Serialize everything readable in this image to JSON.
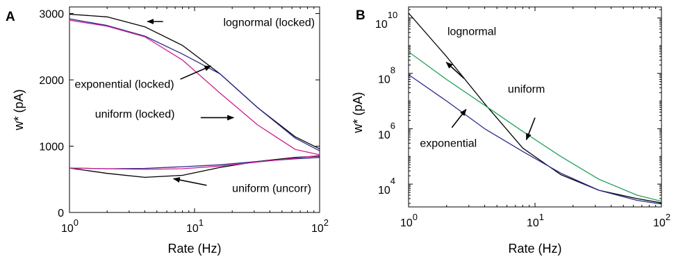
{
  "chart_data": [
    {
      "panel": "A",
      "type": "line",
      "xlabel": "Rate (Hz)",
      "ylabel": "w* (pA)",
      "xscale": "log",
      "yscale": "linear",
      "xlim": [
        1,
        100
      ],
      "ylim": [
        0,
        3100
      ],
      "xticks": [
        {
          "value": 1,
          "base": "10",
          "exp": "0"
        },
        {
          "value": 10,
          "base": "10",
          "exp": "1"
        },
        {
          "value": 100,
          "base": "10",
          "exp": "2"
        }
      ],
      "yticks": [
        {
          "value": 0,
          "label": "0"
        },
        {
          "value": 1000,
          "label": "1000"
        },
        {
          "value": 2000,
          "label": "2000"
        },
        {
          "value": 3000,
          "label": "3000"
        }
      ],
      "grid": false,
      "series": [
        {
          "color": "#000000",
          "x": [
            1,
            2,
            4,
            8,
            16,
            32,
            64,
            100
          ],
          "y": [
            2990,
            2950,
            2800,
            2520,
            2090,
            1580,
            1140,
            960
          ]
        },
        {
          "color": "#2a2a8c",
          "x": [
            1,
            2,
            4,
            8,
            16,
            32,
            64,
            100
          ],
          "y": [
            2920,
            2820,
            2660,
            2390,
            2090,
            1580,
            1120,
            930
          ]
        },
        {
          "color": "#cc1f8f",
          "x": [
            1,
            2,
            4,
            8,
            16,
            32,
            64,
            100
          ],
          "y": [
            2900,
            2810,
            2650,
            2300,
            1800,
            1320,
            950,
            870
          ]
        },
        {
          "color": "#000000",
          "x": [
            1,
            2,
            4,
            8,
            16,
            32,
            64,
            100
          ],
          "y": [
            670,
            590,
            530,
            560,
            680,
            770,
            830,
            850
          ]
        },
        {
          "color": "#2a2a8c",
          "x": [
            1,
            2,
            4,
            8,
            16,
            32,
            64,
            100
          ],
          "y": [
            670,
            660,
            665,
            690,
            720,
            770,
            810,
            830
          ]
        },
        {
          "color": "#cc1f8f",
          "x": [
            1,
            2,
            4,
            8,
            16,
            32,
            64,
            100
          ],
          "y": [
            670,
            660,
            650,
            660,
            700,
            760,
            820,
            860
          ]
        }
      ],
      "annotations": [
        {
          "text": "lognormal (locked)",
          "pos": [
            17,
            2810
          ],
          "arrow_from": [
            5.6,
            2880
          ],
          "arrow_to": [
            4.2,
            2880
          ]
        },
        {
          "text": "exponential (locked)",
          "pos": [
            1.1,
            1880
          ],
          "arrow_from": [
            7.7,
            2010
          ],
          "arrow_to": [
            13.5,
            2210
          ]
        },
        {
          "text": "uniform (locked)",
          "pos": [
            1.6,
            1430
          ],
          "arrow_from": [
            11.2,
            1430
          ],
          "arrow_to": [
            20.5,
            1430
          ]
        },
        {
          "text": "uniform (uncorr)",
          "pos": [
            20,
            310
          ],
          "arrow_from": [
            12.5,
            410
          ],
          "arrow_to": [
            6.8,
            510
          ]
        }
      ]
    },
    {
      "panel": "B",
      "type": "line",
      "xlabel": "Rate (Hz)",
      "ylabel": "w* (pA)",
      "xscale": "log",
      "yscale": "log",
      "xlim": [
        1,
        100
      ],
      "ylim": [
        1500,
        25000000000
      ],
      "xticks": [
        {
          "value": 1,
          "base": "10",
          "exp": "0"
        },
        {
          "value": 10,
          "base": "10",
          "exp": "1"
        },
        {
          "value": 100,
          "base": "10",
          "exp": "2"
        }
      ],
      "yticks": [
        {
          "value": 10000,
          "base": "10",
          "exp": "4"
        },
        {
          "value": 1000000,
          "base": "10",
          "exp": "6"
        },
        {
          "value": 100000000,
          "base": "10",
          "exp": "8"
        },
        {
          "value": 10000000000,
          "base": "10",
          "exp": "10"
        }
      ],
      "grid": false,
      "series": [
        {
          "color": "#000000",
          "x": [
            1,
            2,
            4,
            8,
            16,
            32,
            64,
            100
          ],
          "y": [
            15000000000,
            400000000,
            8000000,
            200000,
            22000,
            6000,
            3000,
            2100
          ]
        },
        {
          "color": "#22a05a",
          "x": [
            1,
            2,
            4,
            8,
            16,
            32,
            64,
            100
          ],
          "y": [
            600000000,
            60000000,
            7000000,
            800000,
            100000,
            15000,
            4000,
            2400
          ]
        },
        {
          "color": "#2a2a8c",
          "x": [
            1,
            2,
            4,
            8,
            16,
            32,
            64,
            100
          ],
          "y": [
            90000000,
            10000000,
            1000000,
            150000,
            25000,
            6000,
            2600,
            1900
          ]
        }
      ],
      "annotations": [
        {
          "text": "lognormal",
          "pos": [
            2.03,
            2400000000
          ],
          "arrow_from": [
            2.75,
            65000000
          ],
          "arrow_to": [
            1.99,
            250000000
          ]
        },
        {
          "text": "uniform",
          "pos": [
            6.1,
            20000000
          ],
          "arrow_from": [
            10.0,
            2500000
          ],
          "arrow_to": [
            8.55,
            400000
          ]
        },
        {
          "text": "exponential",
          "pos": [
            1.23,
            220000
          ],
          "arrow_from": [
            2.2,
            1100000
          ],
          "arrow_to": [
            2.85,
            5000000
          ]
        }
      ]
    }
  ]
}
